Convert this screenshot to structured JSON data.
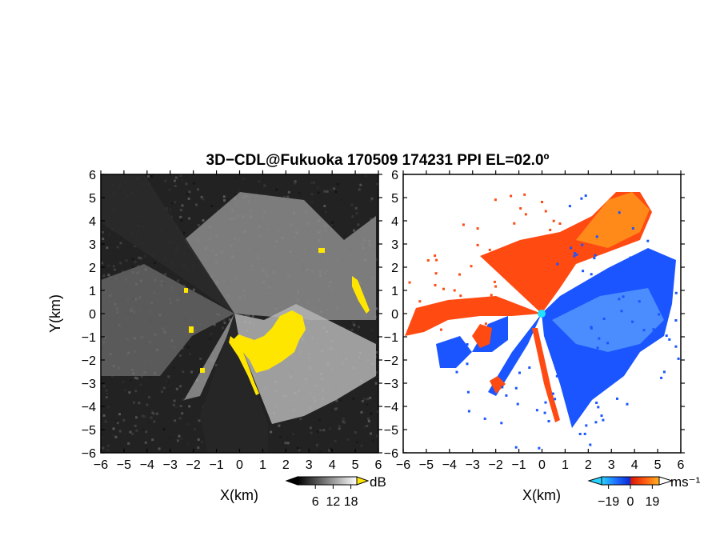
{
  "figure": {
    "title": "3D−CDL@Fukuoka 170509 174231 PPI EL=02.0º"
  },
  "chart_data": [
    {
      "type": "heatmap",
      "panel": "left",
      "title": "",
      "xlabel": "X(km)",
      "ylabel": "Y(km)",
      "xlim": [
        -6,
        6
      ],
      "ylim": [
        -6,
        6
      ],
      "x_ticks": [
        "−6",
        "−5",
        "−4",
        "−3",
        "−2",
        "−1",
        "0",
        "1",
        "2",
        "3",
        "4",
        "5",
        "6"
      ],
      "y_ticks": [
        "6",
        "5",
        "4",
        "3",
        "2",
        "1",
        "0",
        "−1",
        "−2",
        "−3",
        "−4",
        "−5",
        "−6"
      ],
      "colorbar": {
        "unit": "dB",
        "tick_labels": [
          "6",
          "12",
          "18"
        ],
        "ticks": [
          6,
          12,
          18
        ],
        "range": [
          0,
          20
        ],
        "colors": [
          "#000000",
          "#ffffff"
        ],
        "over_color": "#ffe600"
      },
      "background": "#222222",
      "clutter_color": "#ffe600"
    },
    {
      "type": "heatmap",
      "panel": "right",
      "title": "",
      "xlabel": "X(km)",
      "ylabel": "",
      "xlim": [
        -6,
        6
      ],
      "ylim": [
        -6,
        6
      ],
      "x_ticks": [
        "−6",
        "−5",
        "−4",
        "−3",
        "−2",
        "−1",
        "0",
        "1",
        "2",
        "3",
        "4",
        "5",
        "6"
      ],
      "y_ticks": [
        "6",
        "5",
        "4",
        "3",
        "2",
        "1",
        "0",
        "−1",
        "−2",
        "−3",
        "−4",
        "−5",
        "−6"
      ],
      "colorbar": {
        "unit": "ms⁻¹",
        "tick_labels": [
          "−19",
          "0",
          "19"
        ],
        "ticks": [
          -19,
          0,
          19
        ],
        "range": [
          -25,
          25
        ],
        "colors": [
          "#29d3ff",
          "#1f6fff",
          "#0a2dd6",
          "#d81a0a",
          "#ff5a10",
          "#ffb020"
        ]
      },
      "approaching_color": "#1a55ff",
      "receding_color": "#ff4a12",
      "radar_marker_color": "#22e0ff"
    }
  ]
}
